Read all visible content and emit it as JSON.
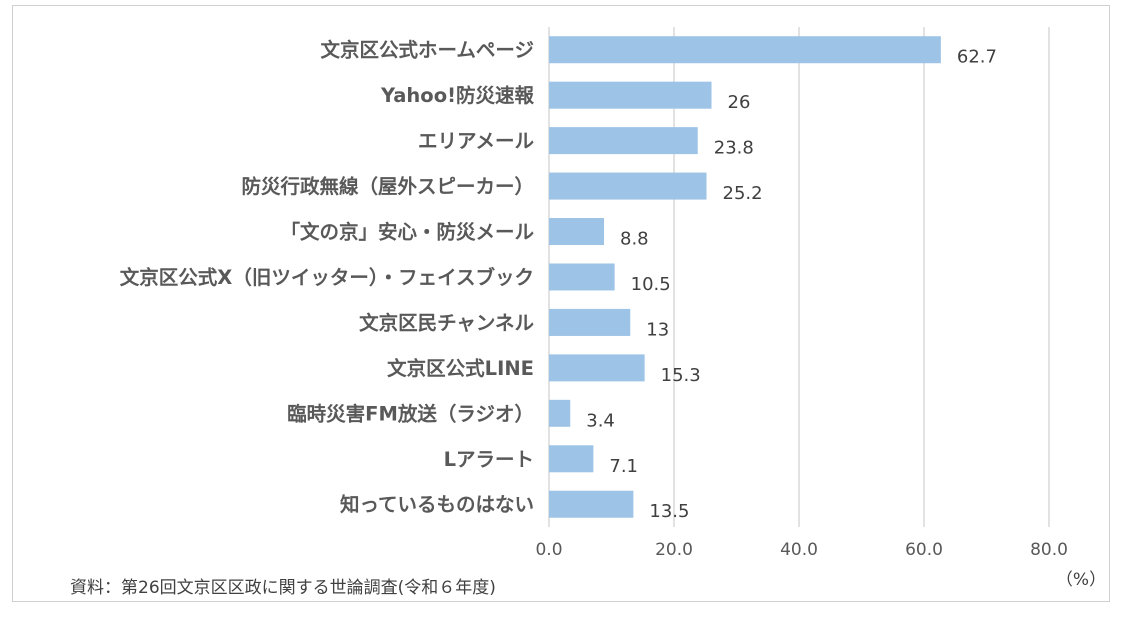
{
  "chart_data": {
    "type": "bar",
    "orientation": "horizontal",
    "categories": [
      "文京区公式ホームページ",
      "Yahoo!防災速報",
      "エリアメール",
      "防災行政無線（屋外スピーカー）",
      "「文の京」安心・防災メール",
      "文京区公式X（旧ツイッター）・フェイスブック",
      "文京区民チャンネル",
      "文京区公式LINE",
      "臨時災害FM放送（ラジオ）",
      "Lアラート",
      "知っているものはない"
    ],
    "values": [
      62.7,
      26,
      23.8,
      25.2,
      8.8,
      10.5,
      13,
      15.3,
      3.4,
      7.1,
      13.5
    ],
    "value_labels": [
      "62.7",
      "26",
      "23.8",
      "25.2",
      "8.8",
      "10.5",
      "13",
      "15.3",
      "3.4",
      "7.1",
      "13.5"
    ],
    "xlim": [
      0,
      80
    ],
    "ticks": [
      "0.0",
      "20.0",
      "40.0",
      "60.0",
      "80.0"
    ],
    "unit": "（%）",
    "grid": "vertical",
    "bar_color": "#9dc3e6"
  },
  "source": "資料：第26回文京区区政に関する世論調査(令和６年度)"
}
